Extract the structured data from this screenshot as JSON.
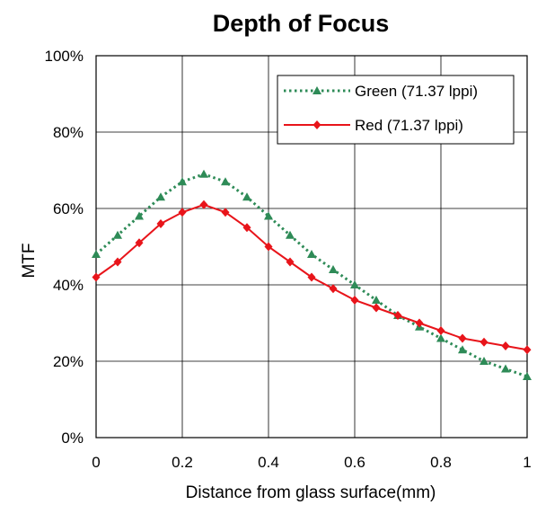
{
  "chart_data": {
    "type": "line",
    "title": "Depth of Focus",
    "xlabel": "Distance from glass surface(mm)",
    "ylabel": "MTF",
    "xlim": [
      0,
      1
    ],
    "ylim": [
      0,
      100
    ],
    "x_ticks": [
      "0",
      "0.2",
      "0.4",
      "0.6",
      "0.8",
      "1"
    ],
    "y_ticks": [
      "0%",
      "20%",
      "40%",
      "60%",
      "80%",
      "100%"
    ],
    "grid": true,
    "legend_position": "top-right",
    "x": [
      0,
      0.05,
      0.1,
      0.15,
      0.2,
      0.25,
      0.3,
      0.35,
      0.4,
      0.45,
      0.5,
      0.55,
      0.6,
      0.65,
      0.7,
      0.75,
      0.8,
      0.85,
      0.9,
      0.95,
      1.0
    ],
    "series": [
      {
        "name": "Green (71.37 lppi)",
        "color": "#2e8b57",
        "marker": "triangle",
        "line_style": "dotted",
        "values": [
          48,
          53,
          58,
          63,
          67,
          69,
          67,
          63,
          58,
          53,
          48,
          44,
          40,
          36,
          32,
          29,
          26,
          23,
          20,
          18,
          16
        ]
      },
      {
        "name": "Red (71.37 lppi)",
        "color": "#e8141a",
        "marker": "diamond",
        "line_style": "solid",
        "values": [
          42,
          46,
          51,
          56,
          59,
          61,
          59,
          55,
          50,
          46,
          42,
          39,
          36,
          34,
          32,
          30,
          28,
          26,
          25,
          24,
          23
        ]
      }
    ]
  }
}
